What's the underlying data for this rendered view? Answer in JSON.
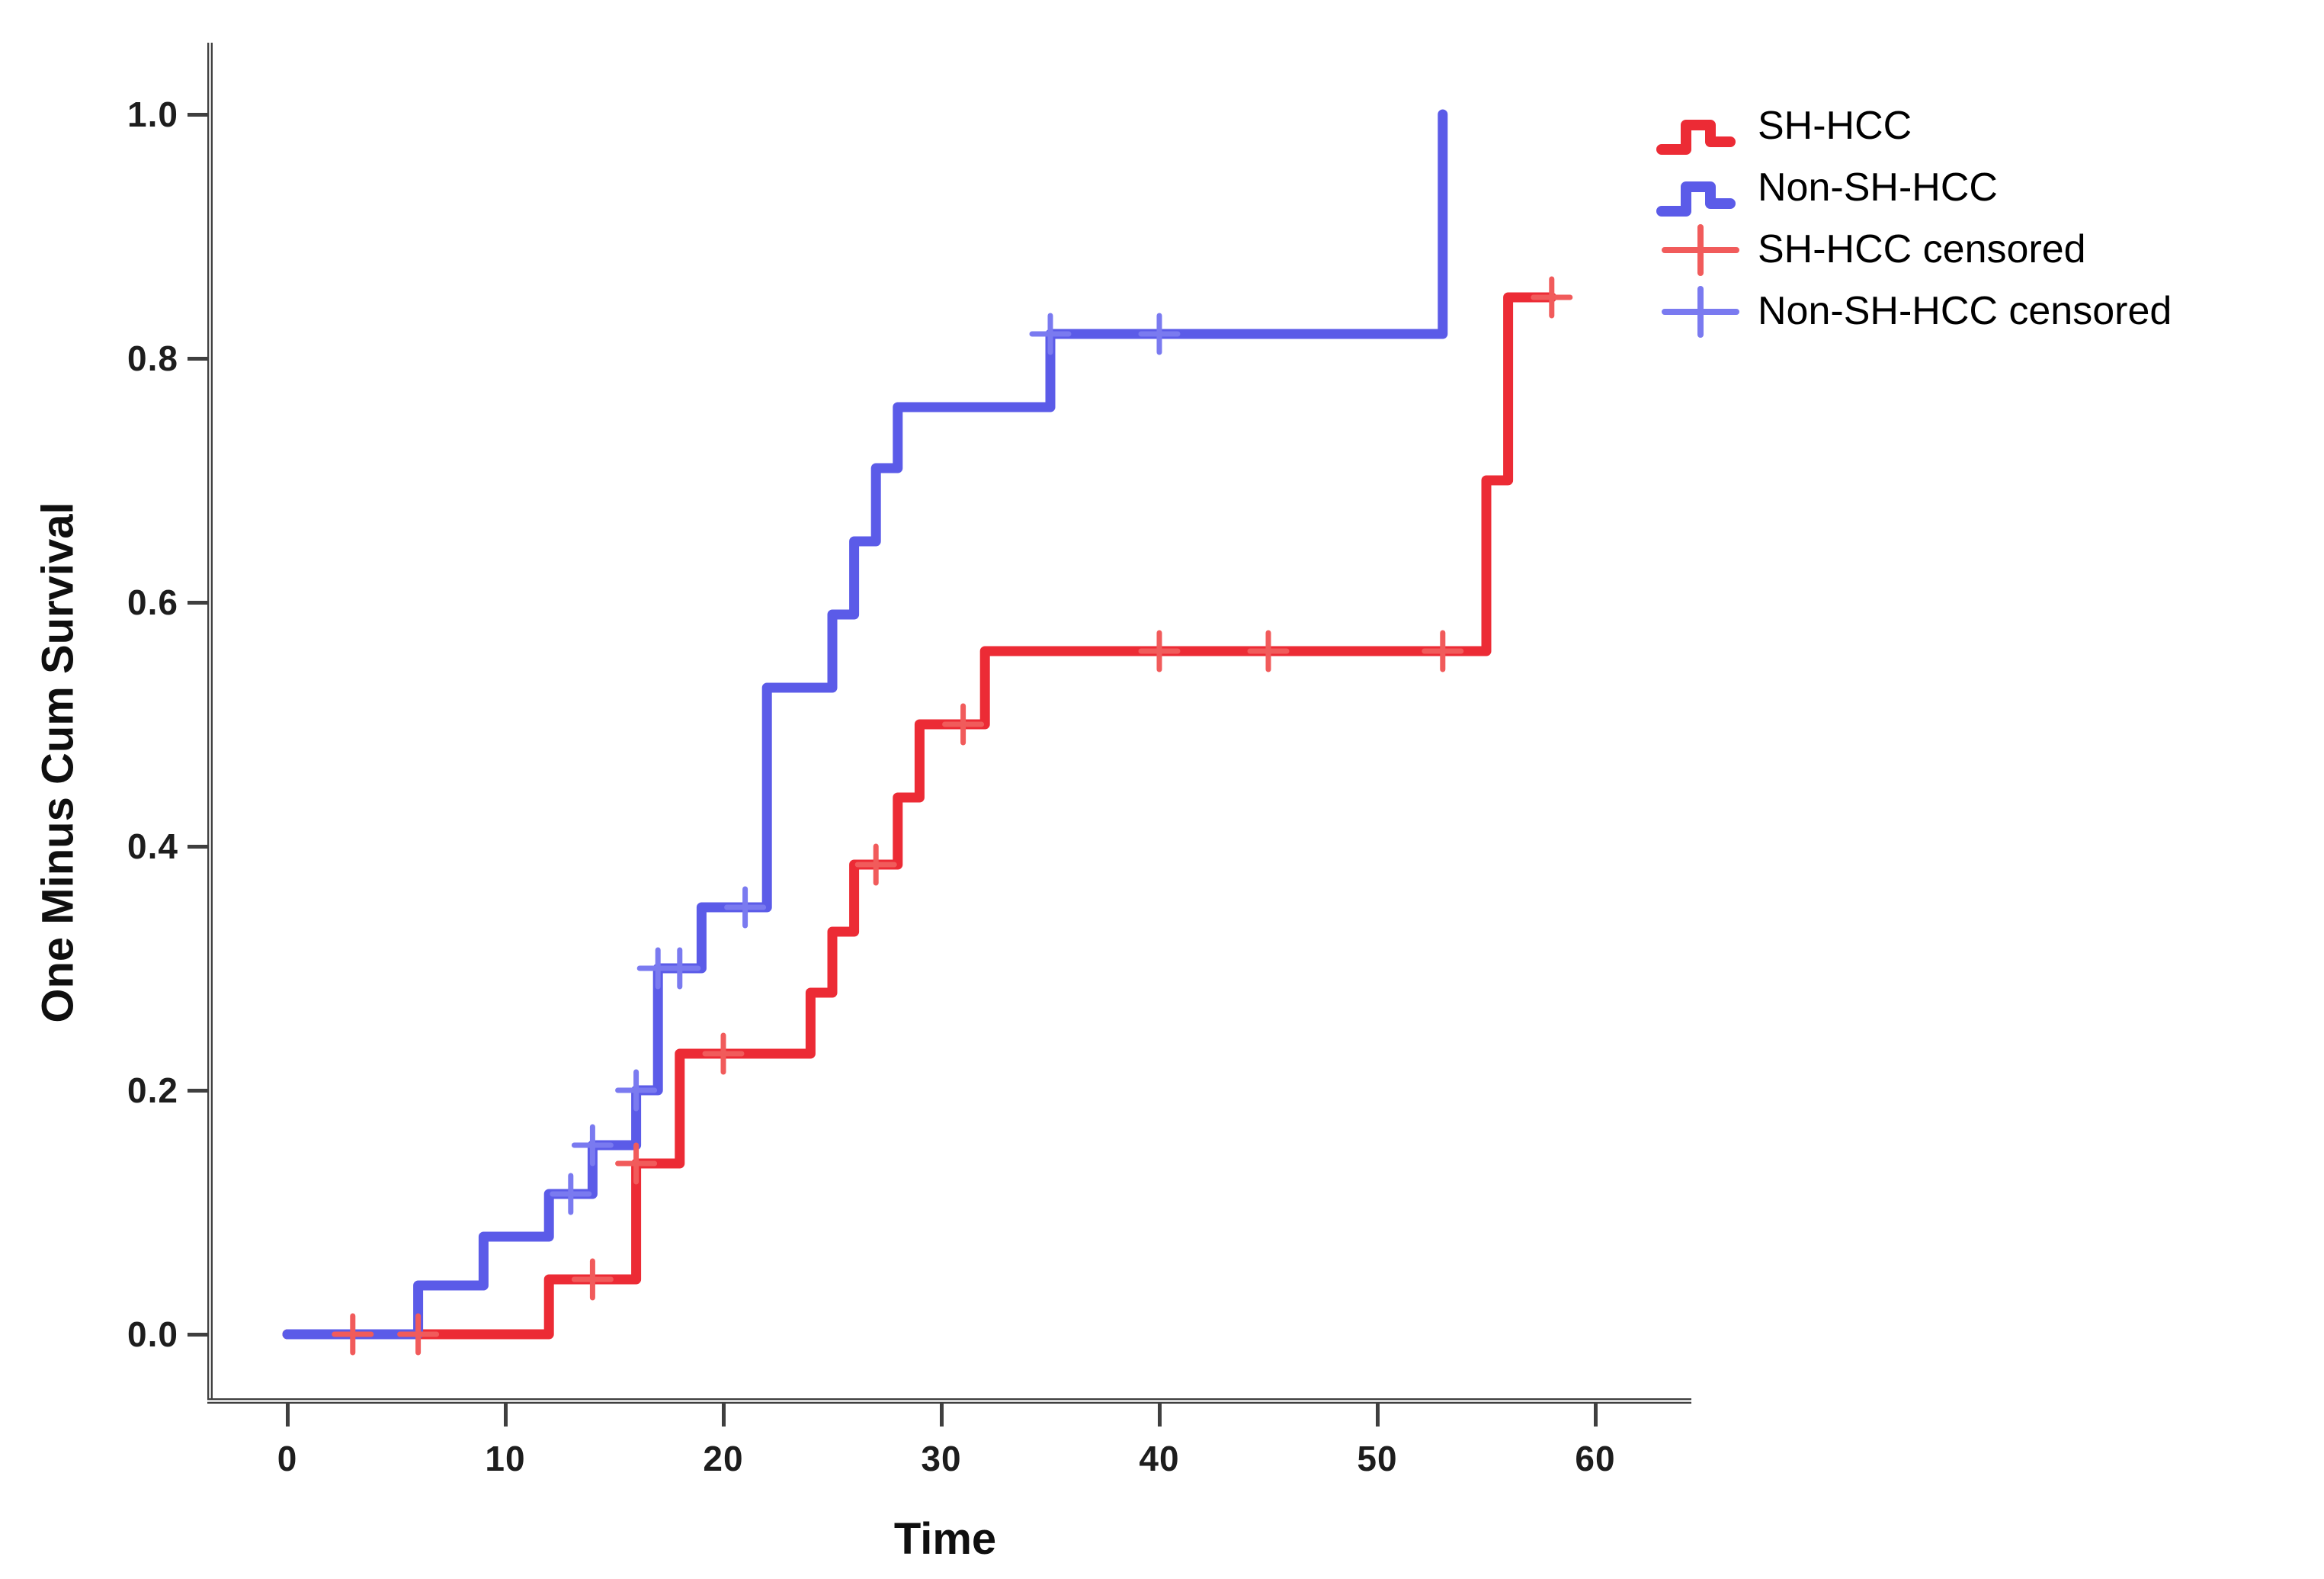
{
  "chart_data": {
    "type": "line",
    "subtype": "kaplan-meier-step-plot (one minus cumulative survival)",
    "title": "",
    "xlabel": "Time",
    "ylabel": "One Minus Cum Survival",
    "x_ticks": [
      0,
      10,
      20,
      30,
      40,
      50,
      60
    ],
    "y_ticks": [
      "0.0",
      "0.2",
      "0.4",
      "0.6",
      "0.8",
      "1.0"
    ],
    "xlim": [
      -3,
      64
    ],
    "ylim": [
      -0.05,
      1.05
    ],
    "grid": false,
    "legend_position": "top-right",
    "background": "#ffffff",
    "axis_color": "#3f3f3f",
    "series": [
      {
        "name": "SH-HCC",
        "color": "#EC2B35",
        "censor_color": "#F15B5B",
        "steps": [
          [
            0,
            0
          ],
          [
            12,
            0.045
          ],
          [
            16,
            0.14
          ],
          [
            18,
            0.23
          ],
          [
            24,
            0.28
          ],
          [
            25,
            0.33
          ],
          [
            26,
            0.385
          ],
          [
            28,
            0.44
          ],
          [
            29,
            0.5
          ],
          [
            32,
            0.56
          ],
          [
            55,
            0.7
          ],
          [
            56,
            0.85
          ]
        ],
        "end_time": 58,
        "censored_points": [
          [
            3,
            0
          ],
          [
            6,
            0
          ],
          [
            14,
            0.045
          ],
          [
            16,
            0.14
          ],
          [
            20,
            0.23
          ],
          [
            27,
            0.385
          ],
          [
            31,
            0.5
          ],
          [
            40,
            0.56
          ],
          [
            45,
            0.56
          ],
          [
            53,
            0.56
          ],
          [
            58,
            0.85
          ]
        ]
      },
      {
        "name": "Non-SH-HCC",
        "color": "#5B5BE8",
        "censor_color": "#7A7AF0",
        "steps": [
          [
            0,
            0
          ],
          [
            6,
            0.04
          ],
          [
            9,
            0.08
          ],
          [
            12,
            0.115
          ],
          [
            14,
            0.155
          ],
          [
            16,
            0.2
          ],
          [
            17,
            0.3
          ],
          [
            19,
            0.35
          ],
          [
            22,
            0.53
          ],
          [
            25,
            0.59
          ],
          [
            26,
            0.65
          ],
          [
            27,
            0.71
          ],
          [
            28,
            0.76
          ],
          [
            35,
            0.82
          ],
          [
            53,
            1.0
          ]
        ],
        "end_time": 53,
        "censored_points": [
          [
            13,
            0.115
          ],
          [
            14,
            0.155
          ],
          [
            16,
            0.2
          ],
          [
            17,
            0.3
          ],
          [
            18,
            0.3
          ],
          [
            21,
            0.35
          ],
          [
            35,
            0.82
          ],
          [
            40,
            0.82
          ]
        ]
      }
    ],
    "legend_entries": [
      {
        "label": "SH-HCC",
        "marker": "step-line",
        "color": "#EC2B35"
      },
      {
        "label": "Non-SH-HCC",
        "marker": "step-line",
        "color": "#5B5BE8"
      },
      {
        "label": "SH-HCC censored",
        "marker": "plus",
        "color": "#F15B5B"
      },
      {
        "label": "Non-SH-HCC censored",
        "marker": "plus",
        "color": "#7A7AF0"
      }
    ]
  }
}
